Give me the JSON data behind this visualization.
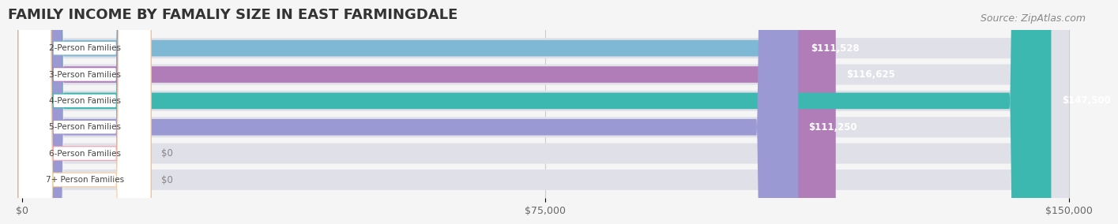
{
  "title": "FAMILY INCOME BY FAMALIY SIZE IN EAST FARMINGDALE",
  "source": "Source: ZipAtlas.com",
  "categories": [
    "2-Person Families",
    "3-Person Families",
    "4-Person Families",
    "5-Person Families",
    "6-Person Families",
    "7+ Person Families"
  ],
  "values": [
    111528,
    116625,
    147500,
    111250,
    0,
    0
  ],
  "bar_colors": [
    "#7eb8d4",
    "#b07db8",
    "#3db8b0",
    "#9b99d4",
    "#f0a0b0",
    "#f5d0a0"
  ],
  "label_colors": [
    "#5a9ab8",
    "#9060a0",
    "#2a9890",
    "#7878b8",
    "#d07888",
    "#d0a870"
  ],
  "xlim": [
    0,
    150000
  ],
  "xticks": [
    0,
    75000,
    150000
  ],
  "xtick_labels": [
    "$0",
    "$75,000",
    "$150,000"
  ],
  "background_color": "#f5f5f5",
  "bar_bg_color": "#e8e8e8",
  "title_fontsize": 13,
  "source_fontsize": 9
}
